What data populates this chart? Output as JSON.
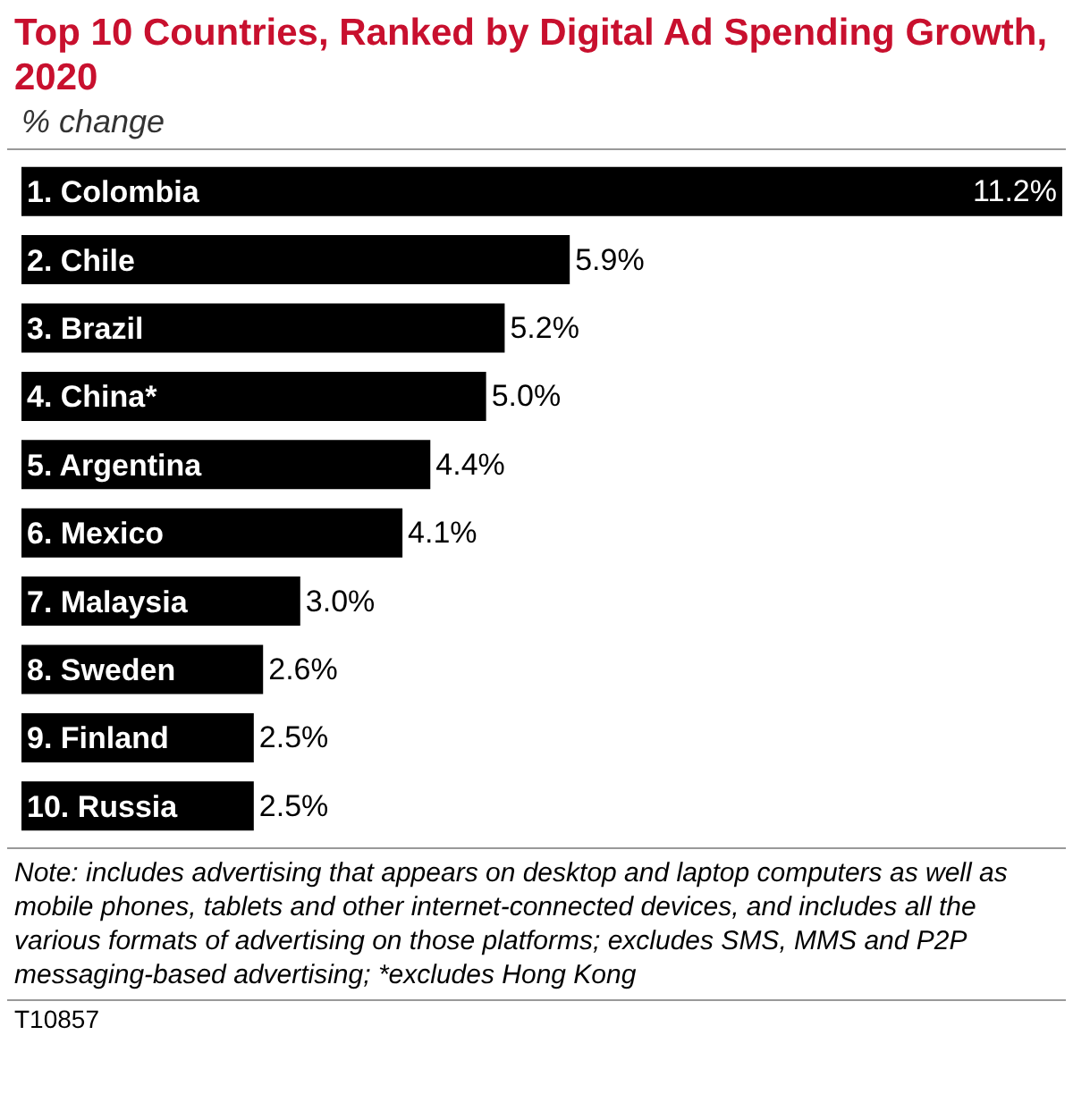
{
  "chart_data": {
    "type": "bar",
    "orientation": "horizontal",
    "title": "Top 10 Countries, Ranked by Digital Ad Spending Growth, 2020",
    "subtitle": "% change",
    "categories": [
      "1. Colombia",
      "2. Chile",
      "3. Brazil",
      "4. China*",
      "5. Argentina",
      "6. Mexico",
      "7. Malaysia",
      "8. Sweden",
      "9. Finland",
      "10. Russia"
    ],
    "values": [
      11.2,
      5.9,
      5.2,
      5.0,
      4.4,
      4.1,
      3.0,
      2.6,
      2.5,
      2.5
    ],
    "value_labels": [
      "11.2%",
      "5.9%",
      "5.2%",
      "5.0%",
      "4.4%",
      "4.1%",
      "3.0%",
      "2.6%",
      "2.5%",
      "2.5%"
    ],
    "color": "#000000",
    "xlim": [
      0,
      11.2
    ],
    "tick_labels": "y",
    "grid": false,
    "legend": false,
    "annotations": [
      "Note: includes advertising that appears on desktop and laptop computers as well as mobile phones, tablets and other internet-connected devices, and includes all the various formats of advertising on those platforms; excludes SMS, MMS and P2P messaging-based advertising; *excludes Hong Kong",
      "T10857"
    ]
  }
}
